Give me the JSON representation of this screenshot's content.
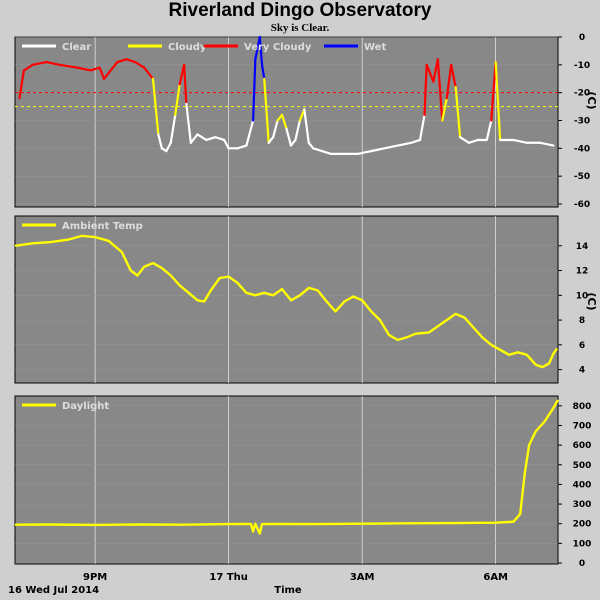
{
  "header": {
    "title": "Riverland Dingo Observatory",
    "status": "Sky is Clear."
  },
  "footer": {
    "date": "16 Wed Jul 2014",
    "xaxis_label": "Time"
  },
  "colors": {
    "panel_bg": "#888888",
    "grid": "#ffffff",
    "clear": "#ffffff",
    "cloudy": "#ffff00",
    "very_cloudy": "#ff0000",
    "wet": "#0000ff",
    "threshold_cloudy": "#ffff00",
    "threshold_very_cloudy": "#ff0000"
  },
  "x_ticks": [
    {
      "t": 9,
      "label": "9PM"
    },
    {
      "t": 12,
      "label": "17 Thu"
    },
    {
      "t": 15,
      "label": "3AM"
    },
    {
      "t": 18,
      "label": "6AM"
    }
  ],
  "chart_data": [
    {
      "type": "line",
      "name": "sky-temperature",
      "legend": [
        "Clear",
        "Cloudy",
        "Very Cloudy",
        "Wet"
      ],
      "unit": "(C)",
      "ylim": [
        -60,
        0
      ],
      "yticks": [
        0,
        -10,
        -20,
        -30,
        -40,
        -50,
        -60
      ],
      "thresholds": {
        "very_cloudy": -20,
        "cloudy": -25
      },
      "xlim": [
        7.2,
        19.4
      ],
      "wet_segments": [
        [
          12.55,
          12.8
        ]
      ],
      "points": [
        [
          7.3,
          -22
        ],
        [
          7.4,
          -12
        ],
        [
          7.6,
          -10
        ],
        [
          7.9,
          -9
        ],
        [
          8.2,
          -10
        ],
        [
          8.6,
          -11
        ],
        [
          8.9,
          -12
        ],
        [
          9.1,
          -11
        ],
        [
          9.2,
          -15
        ],
        [
          9.3,
          -13
        ],
        [
          9.5,
          -9
        ],
        [
          9.7,
          -8
        ],
        [
          9.9,
          -9
        ],
        [
          10.1,
          -11
        ],
        [
          10.3,
          -15
        ],
        [
          10.42,
          -35
        ],
        [
          10.5,
          -40
        ],
        [
          10.6,
          -41
        ],
        [
          10.7,
          -38
        ],
        [
          10.8,
          -28
        ],
        [
          10.9,
          -17
        ],
        [
          11.0,
          -10
        ],
        [
          11.05,
          -24
        ],
        [
          11.15,
          -38
        ],
        [
          11.3,
          -35
        ],
        [
          11.5,
          -37
        ],
        [
          11.7,
          -36
        ],
        [
          11.9,
          -37
        ],
        [
          12.0,
          -40
        ],
        [
          12.2,
          -40
        ],
        [
          12.4,
          -39
        ],
        [
          12.55,
          -30
        ],
        [
          12.6,
          -8
        ],
        [
          12.7,
          0
        ],
        [
          12.75,
          -10
        ],
        [
          12.8,
          -15
        ],
        [
          12.9,
          -38
        ],
        [
          13.0,
          -36
        ],
        [
          13.1,
          -30
        ],
        [
          13.2,
          -28
        ],
        [
          13.3,
          -33
        ],
        [
          13.4,
          -39
        ],
        [
          13.5,
          -37
        ],
        [
          13.6,
          -30
        ],
        [
          13.7,
          -26
        ],
        [
          13.8,
          -38
        ],
        [
          13.9,
          -40
        ],
        [
          14.1,
          -41
        ],
        [
          14.3,
          -42
        ],
        [
          14.6,
          -42
        ],
        [
          14.9,
          -42
        ],
        [
          15.2,
          -41
        ],
        [
          15.5,
          -40
        ],
        [
          15.8,
          -39
        ],
        [
          16.1,
          -38
        ],
        [
          16.3,
          -37
        ],
        [
          16.4,
          -28
        ],
        [
          16.45,
          -10
        ],
        [
          16.6,
          -16
        ],
        [
          16.7,
          -8
        ],
        [
          16.8,
          -30
        ],
        [
          16.9,
          -22
        ],
        [
          17.0,
          -10
        ],
        [
          17.1,
          -18
        ],
        [
          17.2,
          -36
        ],
        [
          17.4,
          -38
        ],
        [
          17.6,
          -37
        ],
        [
          17.8,
          -37
        ],
        [
          17.9,
          -30
        ],
        [
          18.0,
          -9
        ],
        [
          18.1,
          -37
        ],
        [
          18.4,
          -37
        ],
        [
          18.7,
          -38
        ],
        [
          19.0,
          -38
        ],
        [
          19.3,
          -39
        ]
      ]
    },
    {
      "type": "line",
      "name": "ambient-temperature",
      "legend": [
        "Ambient Temp"
      ],
      "unit": "(C)",
      "ylim": [
        3,
        16
      ],
      "yticks": [
        14,
        12,
        10,
        8,
        6,
        4
      ],
      "xlim": [
        7.2,
        19.4
      ],
      "points": [
        [
          7.2,
          14.0
        ],
        [
          7.6,
          14.2
        ],
        [
          8.0,
          14.3
        ],
        [
          8.4,
          14.5
        ],
        [
          8.7,
          14.8
        ],
        [
          9.0,
          14.7
        ],
        [
          9.3,
          14.4
        ],
        [
          9.6,
          13.5
        ],
        [
          9.8,
          12.0
        ],
        [
          9.95,
          11.6
        ],
        [
          10.1,
          12.3
        ],
        [
          10.3,
          12.6
        ],
        [
          10.5,
          12.2
        ],
        [
          10.7,
          11.6
        ],
        [
          10.9,
          10.8
        ],
        [
          11.1,
          10.2
        ],
        [
          11.3,
          9.6
        ],
        [
          11.45,
          9.5
        ],
        [
          11.6,
          10.4
        ],
        [
          11.8,
          11.4
        ],
        [
          12.0,
          11.5
        ],
        [
          12.2,
          11.0
        ],
        [
          12.4,
          10.2
        ],
        [
          12.6,
          10.0
        ],
        [
          12.8,
          10.2
        ],
        [
          13.0,
          10.0
        ],
        [
          13.2,
          10.5
        ],
        [
          13.4,
          9.6
        ],
        [
          13.6,
          10.0
        ],
        [
          13.8,
          10.6
        ],
        [
          14.0,
          10.4
        ],
        [
          14.2,
          9.5
        ],
        [
          14.4,
          8.7
        ],
        [
          14.6,
          9.5
        ],
        [
          14.8,
          9.9
        ],
        [
          15.0,
          9.6
        ],
        [
          15.2,
          8.7
        ],
        [
          15.4,
          8.0
        ],
        [
          15.6,
          6.8
        ],
        [
          15.8,
          6.4
        ],
        [
          16.0,
          6.6
        ],
        [
          16.2,
          6.9
        ],
        [
          16.5,
          7.0
        ],
        [
          16.7,
          7.5
        ],
        [
          16.9,
          8.0
        ],
        [
          17.1,
          8.5
        ],
        [
          17.3,
          8.2
        ],
        [
          17.5,
          7.4
        ],
        [
          17.7,
          6.6
        ],
        [
          17.9,
          6.0
        ],
        [
          18.1,
          5.6
        ],
        [
          18.3,
          5.2
        ],
        [
          18.5,
          5.4
        ],
        [
          18.7,
          5.2
        ],
        [
          18.9,
          4.4
        ],
        [
          19.05,
          4.2
        ],
        [
          19.2,
          4.5
        ],
        [
          19.3,
          5.3
        ],
        [
          19.38,
          5.7
        ]
      ]
    },
    {
      "type": "line",
      "name": "daylight",
      "legend": [
        "Daylight"
      ],
      "unit": "",
      "ylim": [
        0,
        850
      ],
      "yticks": [
        800,
        700,
        600,
        500,
        400,
        300,
        200,
        100,
        0
      ],
      "xlim": [
        7.2,
        19.4
      ],
      "points": [
        [
          7.2,
          195
        ],
        [
          8.0,
          196
        ],
        [
          9.0,
          194
        ],
        [
          10.0,
          196
        ],
        [
          11.0,
          195
        ],
        [
          12.0,
          198
        ],
        [
          12.5,
          199
        ],
        [
          12.55,
          160
        ],
        [
          12.6,
          200
        ],
        [
          12.7,
          150
        ],
        [
          12.75,
          198
        ],
        [
          13.0,
          199
        ],
        [
          14.0,
          198
        ],
        [
          15.0,
          200
        ],
        [
          16.0,
          202
        ],
        [
          17.0,
          203
        ],
        [
          18.0,
          205
        ],
        [
          18.4,
          210
        ],
        [
          18.55,
          250
        ],
        [
          18.65,
          450
        ],
        [
          18.75,
          600
        ],
        [
          18.9,
          670
        ],
        [
          19.1,
          720
        ],
        [
          19.3,
          790
        ],
        [
          19.4,
          830
        ]
      ]
    }
  ]
}
